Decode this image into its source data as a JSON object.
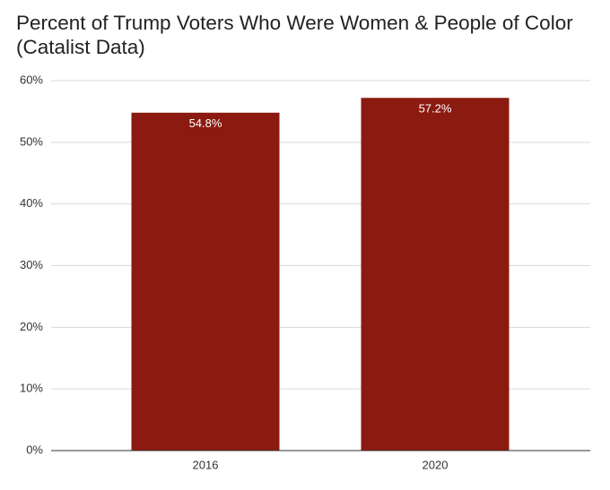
{
  "chart_data": {
    "type": "bar",
    "title": "Percent of Trump Voters Who Were Women & People of Color (Catalist Data)",
    "categories": [
      "2016",
      "2020"
    ],
    "values": [
      54.8,
      57.2
    ],
    "value_labels": [
      "54.8%",
      "57.2%"
    ],
    "color": "#8b1a10",
    "ylim": [
      0,
      60
    ],
    "yticks": [
      {
        "value": 0,
        "label": "0%"
      },
      {
        "value": 10,
        "label": "10%"
      },
      {
        "value": 20,
        "label": "20%"
      },
      {
        "value": 30,
        "label": "30%"
      },
      {
        "value": 40,
        "label": "40%"
      },
      {
        "value": 50,
        "label": "50%"
      },
      {
        "value": 60,
        "label": "60%"
      }
    ],
    "grid": true
  }
}
